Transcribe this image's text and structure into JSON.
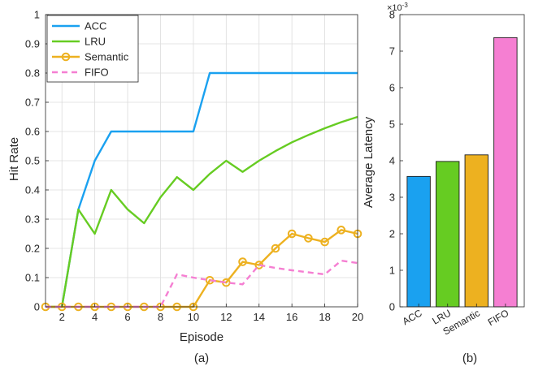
{
  "captions": {
    "a": "(a)",
    "b": "(b)"
  },
  "chart_data": [
    {
      "type": "line",
      "xlabel": "Episode",
      "ylabel": "Hit Rate",
      "xlim": [
        1,
        20
      ],
      "ylim": [
        0,
        1
      ],
      "xticks": [
        2,
        4,
        6,
        8,
        10,
        12,
        14,
        16,
        18,
        20
      ],
      "yticks": [
        0,
        0.1,
        0.2,
        0.3,
        0.4,
        0.5,
        0.6,
        0.7,
        0.8,
        0.9,
        1
      ],
      "ytick_labels": [
        "0",
        "0.1",
        "0.2",
        "0.3",
        "0.4",
        "0.5",
        "0.6",
        "0.7",
        "0.8",
        "0.9",
        "1"
      ],
      "grid": true,
      "legend_position": "top-left",
      "x": [
        1,
        2,
        3,
        4,
        5,
        6,
        7,
        8,
        9,
        10,
        11,
        12,
        13,
        14,
        15,
        16,
        17,
        18,
        19,
        20
      ],
      "series": [
        {
          "name": "ACC",
          "color": "#1AA1F0",
          "style": "solid",
          "marker": "none",
          "values": [
            0,
            0,
            0.333,
            0.5,
            0.6,
            0.6,
            0.6,
            0.6,
            0.6,
            0.6,
            0.8,
            0.8,
            0.8,
            0.8,
            0.8,
            0.8,
            0.8,
            0.8,
            0.8,
            0.8
          ]
        },
        {
          "name": "LRU",
          "color": "#66CC22",
          "style": "solid",
          "marker": "none",
          "values": [
            0,
            0,
            0.333,
            0.25,
            0.4,
            0.333,
            0.286,
            0.375,
            0.444,
            0.4,
            0.455,
            0.5,
            0.462,
            0.5,
            0.533,
            0.563,
            0.588,
            0.611,
            0.632,
            0.65
          ]
        },
        {
          "name": "Semantic",
          "color": "#EDB120",
          "style": "solid",
          "marker": "circle",
          "values": [
            0,
            0,
            0,
            0,
            0,
            0,
            0,
            0,
            0,
            0,
            0.091,
            0.083,
            0.154,
            0.143,
            0.2,
            0.25,
            0.235,
            0.222,
            0.263,
            0.25
          ]
        },
        {
          "name": "FIFO",
          "color": "#F57FD2",
          "style": "dashed",
          "marker": "none",
          "values": [
            0,
            0,
            0,
            0,
            0,
            0,
            0,
            0,
            0.111,
            0.1,
            0.091,
            0.083,
            0.077,
            0.143,
            0.133,
            0.125,
            0.118,
            0.111,
            0.158,
            0.15
          ]
        }
      ]
    },
    {
      "type": "bar",
      "ylabel": "Average Latency",
      "exponent_label": "×10",
      "exponent_power": "-3",
      "ylim": [
        0,
        8
      ],
      "yticks": [
        0,
        1,
        2,
        3,
        4,
        5,
        6,
        7,
        8
      ],
      "ytick_labels": [
        "0",
        "1",
        "2",
        "3",
        "4",
        "5",
        "6",
        "7",
        "8"
      ],
      "grid": false,
      "categories": [
        "ACC",
        "LRU",
        "Semantic",
        "FIFO"
      ],
      "values": [
        3.57,
        3.98,
        4.16,
        7.37
      ],
      "colors": [
        "#1AA1F0",
        "#66CC22",
        "#EDB120",
        "#F57FD2"
      ]
    }
  ]
}
